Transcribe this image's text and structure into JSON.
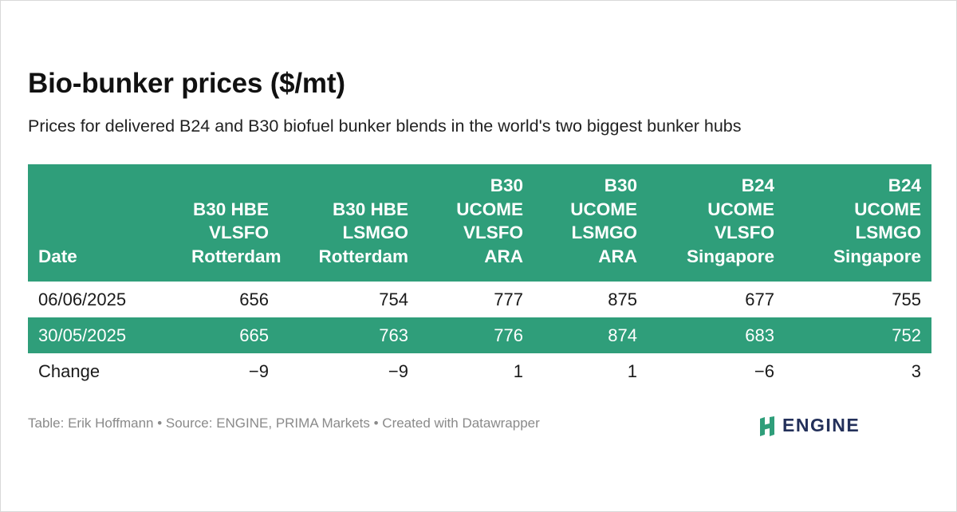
{
  "title": "Bio-bunker prices ($/mt)",
  "subtitle": "Prices for delivered B24 and B30 biofuel bunker blends in the world's two biggest bunker hubs",
  "footer": "Table: Erik Hoffmann • Source: ENGINE, PRIMA Markets • Created with Datawrapper",
  "logo": {
    "text": "ENGINE",
    "icon": "engine-logo-icon"
  },
  "colors": {
    "header_bg": "#2f9e7a",
    "band_bg": "#2f9e7a",
    "logo_green": "#2f9e7a",
    "logo_navy": "#23305a"
  },
  "chart_data": {
    "type": "table",
    "title": "Bio-bunker prices ($/mt)",
    "columns": [
      [
        "Date"
      ],
      [
        "B30 HBE",
        "VLSFO",
        "Rotterdam"
      ],
      [
        "B30 HBE",
        "LSMGO",
        "Rotterdam"
      ],
      [
        "B30",
        "UCOME",
        "VLSFO",
        "ARA"
      ],
      [
        "B30",
        "UCOME",
        "LSMGO",
        "ARA"
      ],
      [
        "B24",
        "UCOME",
        "VLSFO",
        "Singapore"
      ],
      [
        "B24",
        "UCOME",
        "LSMGO",
        "Singapore"
      ]
    ],
    "rows": [
      [
        "06/06/2025",
        "656",
        "754",
        "777",
        "875",
        "677",
        "755"
      ],
      [
        "30/05/2025",
        "665",
        "763",
        "776",
        "874",
        "683",
        "752"
      ],
      [
        "Change",
        "−9",
        "−9",
        "1",
        "1",
        "−6",
        "3"
      ]
    ]
  }
}
